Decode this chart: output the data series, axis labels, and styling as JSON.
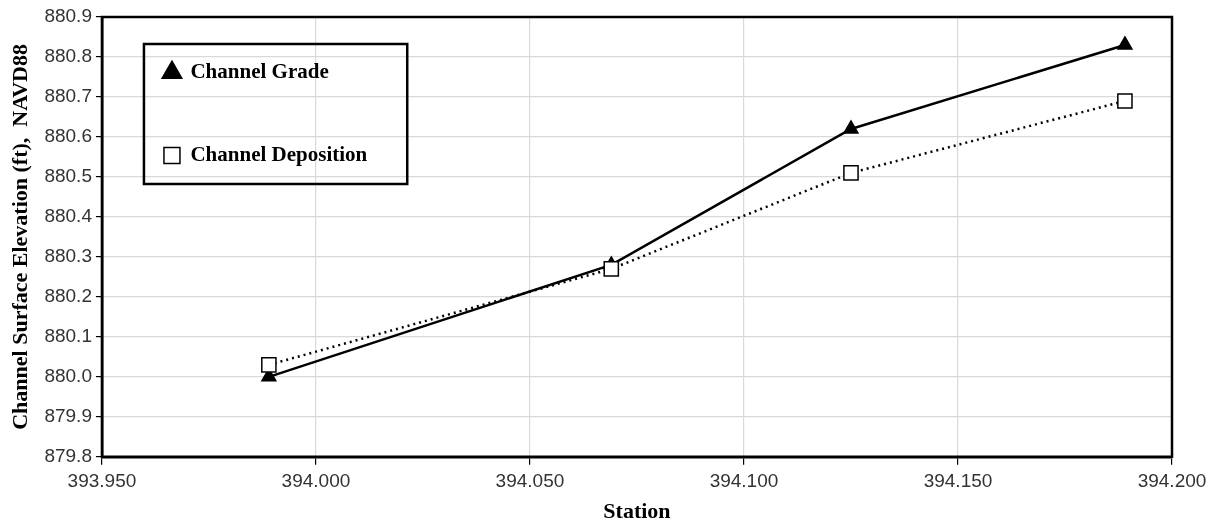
{
  "chart_data": {
    "type": "line",
    "xlabel": "Station",
    "ylabel": "Channel Surface Elevation (ft),  NAVD88",
    "x": [
      393.989,
      394.069,
      394.125,
      394.189
    ],
    "series": [
      {
        "name": "Channel Grade",
        "color": "#000000",
        "values": [
          880.0,
          880.28,
          880.62,
          880.83
        ],
        "marker": "triangle",
        "line_style": "solid"
      },
      {
        "name": "Channel Deposition",
        "color": "#000000",
        "values": [
          880.03,
          880.27,
          880.51,
          880.69
        ],
        "marker": "square",
        "line_style": "dotted"
      }
    ],
    "xlim": [
      393.95,
      394.2
    ],
    "xticks": [
      {
        "value": 393.95,
        "label": "393.950"
      },
      {
        "value": 394.0,
        "label": "394.000"
      },
      {
        "value": 394.05,
        "label": "394.050"
      },
      {
        "value": 394.1,
        "label": "394.100"
      },
      {
        "value": 394.15,
        "label": "394.150"
      },
      {
        "value": 394.2,
        "label": "394.200"
      }
    ],
    "ylim": [
      879.8,
      880.9
    ],
    "yticks": [
      {
        "value": 879.8,
        "label": "879.8"
      },
      {
        "value": 879.9,
        "label": "879.9"
      },
      {
        "value": 880.0,
        "label": "880.0"
      },
      {
        "value": 880.1,
        "label": "880.1"
      },
      {
        "value": 880.2,
        "label": "880.2"
      },
      {
        "value": 880.3,
        "label": "880.3"
      },
      {
        "value": 880.4,
        "label": "880.4"
      },
      {
        "value": 880.5,
        "label": "880.5"
      },
      {
        "value": 880.6,
        "label": "880.6"
      },
      {
        "value": 880.7,
        "label": "880.7"
      },
      {
        "value": 880.8,
        "label": "880.8"
      },
      {
        "value": 880.9,
        "label": "880.9"
      }
    ],
    "grid": true,
    "legend": "top left"
  }
}
